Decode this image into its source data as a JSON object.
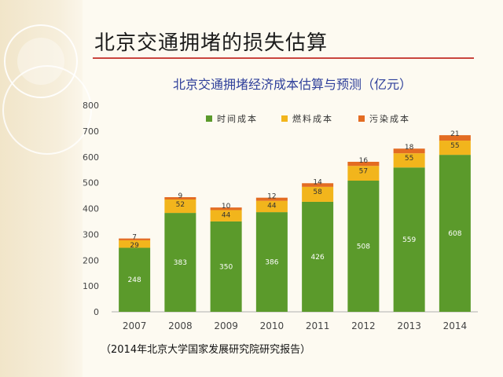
{
  "slide": {
    "title": "北京交通拥堵的损失估算",
    "source": "（2014年北京大学国家发展研究院研究报告）"
  },
  "colors": {
    "time": "#5b9a2b",
    "fuel": "#f2b51c",
    "pollution": "#e36c22",
    "title_rule": "#c9453e",
    "chart_title": "#2e3f9a"
  },
  "chart_data": {
    "type": "bar",
    "stacked": true,
    "title": "北京交通拥堵经济成本估算与预测（亿元）",
    "xlabel": "",
    "ylabel": "",
    "categories": [
      "2007",
      "2008",
      "2009",
      "2010",
      "2011",
      "2012",
      "2013",
      "2014"
    ],
    "ylim": [
      0,
      800
    ],
    "yticks": [
      0,
      100,
      200,
      300,
      400,
      500,
      600,
      700,
      800
    ],
    "grid": false,
    "legend_position": "top",
    "series": [
      {
        "name": "时间成本",
        "color": "#5b9a2b",
        "values": [
          248,
          383,
          350,
          386,
          426,
          508,
          559,
          608
        ]
      },
      {
        "name": "燃料成本",
        "color": "#f2b51c",
        "values": [
          29,
          52,
          44,
          44,
          58,
          57,
          55,
          55
        ]
      },
      {
        "name": "污染成本",
        "color": "#e36c22",
        "values": [
          7,
          9,
          10,
          12,
          14,
          16,
          18,
          21
        ]
      }
    ]
  }
}
